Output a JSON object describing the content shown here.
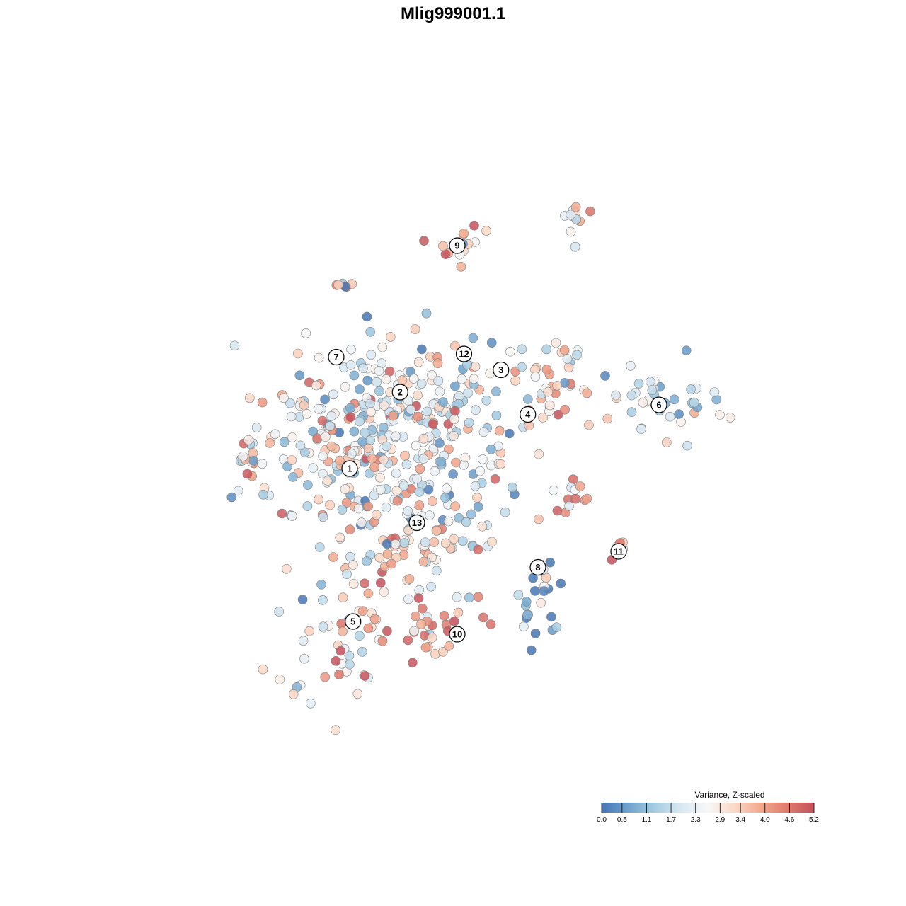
{
  "chart_data": {
    "type": "scatter",
    "title": "Mlig999001.1",
    "xlabel": "",
    "ylabel": "",
    "grid": false,
    "legend": {
      "title": "Variance, Z-scaled",
      "placement": "bottom-right",
      "ticks": [
        "0.0",
        "0.5",
        "1.1",
        "1.7",
        "2.3",
        "2.9",
        "3.4",
        "4.0",
        "4.6",
        "5.2"
      ],
      "range": [
        0,
        5.2
      ]
    },
    "colorscale": [
      "#4575b4",
      "#6fa3cd",
      "#a5cce2",
      "#d9e8f2",
      "#f7f7f7",
      "#fbd9c7",
      "#f2a98d",
      "#e07a6c",
      "#c4505b"
    ],
    "xlim": [
      0,
      100
    ],
    "ylim": [
      0,
      100
    ],
    "cluster_labels": [
      {
        "label": "1",
        "x": 32,
        "y": 47
      },
      {
        "label": "2",
        "x": 39.5,
        "y": 59
      },
      {
        "label": "3",
        "x": 54.5,
        "y": 62.5
      },
      {
        "label": "4",
        "x": 58.5,
        "y": 55.5
      },
      {
        "label": "5",
        "x": 32.5,
        "y": 23
      },
      {
        "label": "6",
        "x": 78,
        "y": 57
      },
      {
        "label": "7",
        "x": 30,
        "y": 64.5
      },
      {
        "label": "8",
        "x": 60,
        "y": 31.5
      },
      {
        "label": "9",
        "x": 48,
        "y": 82
      },
      {
        "label": "10",
        "x": 48,
        "y": 21
      },
      {
        "label": "11",
        "x": 72,
        "y": 34
      },
      {
        "label": "12",
        "x": 49,
        "y": 65
      },
      {
        "label": "13",
        "x": 42,
        "y": 38.5
      }
    ],
    "clusters": [
      {
        "cx": 30,
        "cy": 49,
        "rx": 13,
        "ry": 14,
        "n": 150,
        "mean": 2.4
      },
      {
        "cx": 38,
        "cy": 56,
        "rx": 11,
        "ry": 12,
        "n": 120,
        "mean": 2.3
      },
      {
        "cx": 47,
        "cy": 52,
        "rx": 10,
        "ry": 14,
        "n": 110,
        "mean": 2.2
      },
      {
        "cx": 42,
        "cy": 36,
        "rx": 10,
        "ry": 8,
        "n": 60,
        "mean": 3.0
      },
      {
        "cx": 30,
        "cy": 22,
        "rx": 8,
        "ry": 10,
        "n": 50,
        "mean": 2.9
      },
      {
        "cx": 44,
        "cy": 22,
        "rx": 7,
        "ry": 8,
        "n": 35,
        "mean": 3.3
      },
      {
        "cx": 62,
        "cy": 61,
        "rx": 5,
        "ry": 6,
        "n": 40,
        "mean": 2.9
      },
      {
        "cx": 78,
        "cy": 58,
        "rx": 9,
        "ry": 6,
        "n": 40,
        "mean": 1.6
      },
      {
        "cx": 60,
        "cy": 27,
        "rx": 3,
        "ry": 7,
        "n": 25,
        "mean": 0.9
      },
      {
        "cx": 65,
        "cy": 43,
        "rx": 2.5,
        "ry": 2.5,
        "n": 12,
        "mean": 3.8
      },
      {
        "cx": 48,
        "cy": 82,
        "rx": 3,
        "ry": 3.5,
        "n": 18,
        "mean": 3.3
      },
      {
        "cx": 66,
        "cy": 87,
        "rx": 1.8,
        "ry": 3,
        "n": 12,
        "mean": 2.8
      },
      {
        "cx": 72,
        "cy": 34,
        "rx": 1.5,
        "ry": 1.5,
        "n": 7,
        "mean": 3.1
      },
      {
        "cx": 31,
        "cy": 76,
        "rx": 1.5,
        "ry": 1.5,
        "n": 6,
        "mean": 2.4
      },
      {
        "cx": 17,
        "cy": 49,
        "rx": 2,
        "ry": 3,
        "n": 10,
        "mean": 3.2
      }
    ]
  }
}
